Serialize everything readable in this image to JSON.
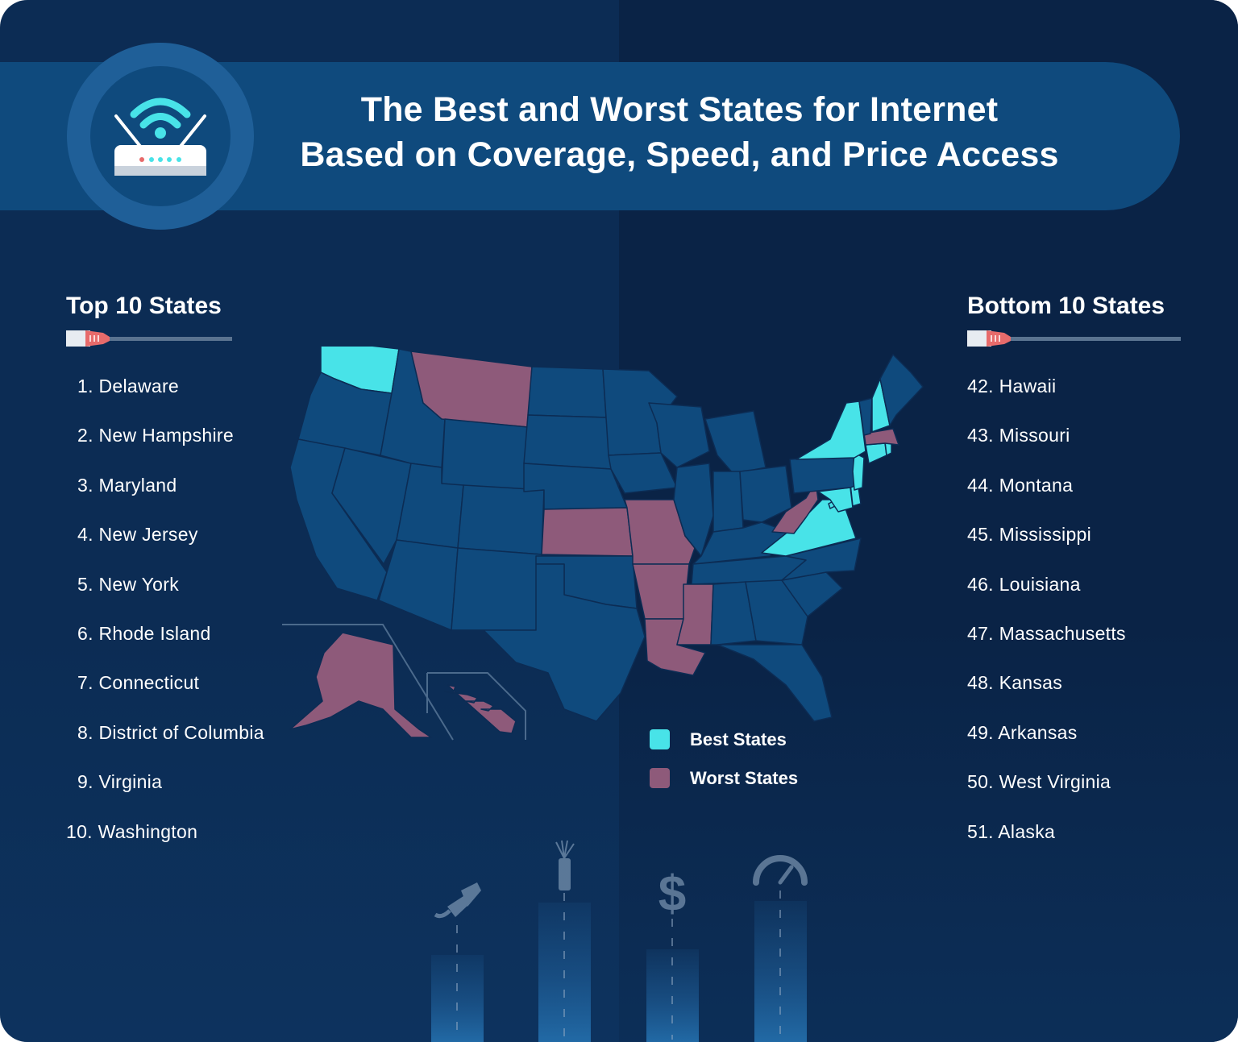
{
  "header": {
    "title_line1": "The Best and Worst States for Internet",
    "title_line2": "Based on Coverage, Speed, and Price Access"
  },
  "badge": {
    "icon": "wifi-router-icon"
  },
  "top_list": {
    "heading": "Top 10 States",
    "items": [
      "1. Delaware",
      "2. New Hampshire",
      "3. Maryland",
      "4. New Jersey",
      "5. New York",
      "6. Rhode Island",
      "7. Connecticut",
      "8. District of Columbia",
      "9. Virginia",
      "10. Washington"
    ]
  },
  "bottom_list": {
    "heading": "Bottom 10 States",
    "items": [
      "42. Hawaii",
      "43. Missouri",
      "44. Montana",
      "45. Mississippi",
      "46. Louisiana",
      "47. Massachusetts",
      "48. Kansas",
      "49. Arkansas",
      "50. West Virginia",
      "51. Alaska"
    ]
  },
  "legend": {
    "best_label": "Best States",
    "worst_label": "Worst States"
  },
  "colors": {
    "background": "#0c2c54",
    "banner": "#0f4a7d",
    "state_default": "#0f4a7d",
    "best": "#48e3e8",
    "worst": "#8e5a7a",
    "text": "#ffffff"
  },
  "map_data": {
    "best_states": [
      "Delaware",
      "New Hampshire",
      "Maryland",
      "New Jersey",
      "New York",
      "Rhode Island",
      "Connecticut",
      "District of Columbia",
      "Virginia",
      "Washington"
    ],
    "worst_states": [
      "Hawaii",
      "Missouri",
      "Montana",
      "Mississippi",
      "Louisiana",
      "Massachusetts",
      "Kansas",
      "Arkansas",
      "West Virginia",
      "Alaska"
    ]
  },
  "footer_icons": [
    "ethernet-cable-icon",
    "fiber-optic-icon",
    "dollar-icon",
    "speedometer-icon"
  ]
}
